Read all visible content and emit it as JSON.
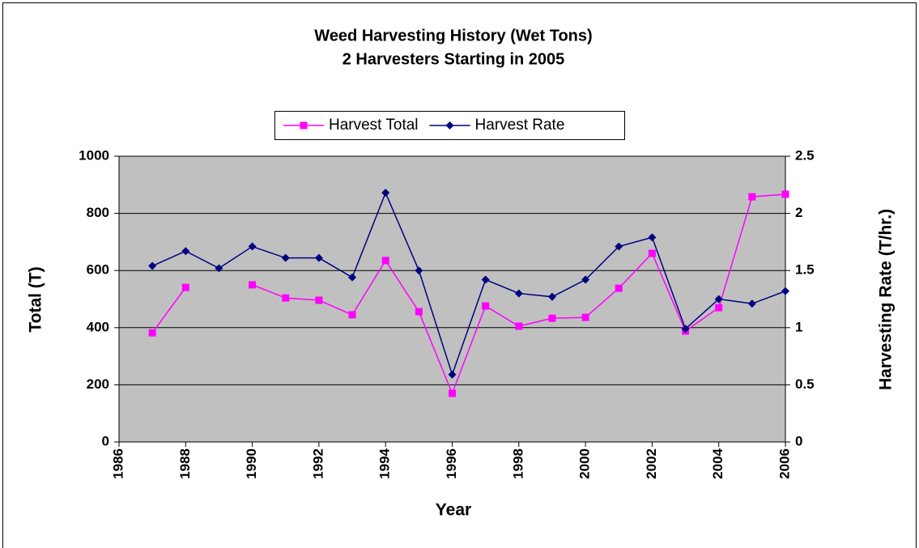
{
  "chart_data": {
    "type": "line",
    "title": "Weed Harvesting History (Wet Tons)",
    "subtitle": "2 Harvesters Starting in 2005",
    "x_label": "Year",
    "y_label": "Total (T)",
    "y2_label": "Harvesting Rate (T/hr.)",
    "x": [
      1987,
      1988,
      1989,
      1990,
      1991,
      1992,
      1993,
      1994,
      1995,
      1996,
      1997,
      1998,
      1999,
      2000,
      2001,
      2002,
      2003,
      2004,
      2005,
      2006
    ],
    "series": [
      {
        "name": "Harvest Total",
        "color": "#ff00ff",
        "marker": "square",
        "values": [
          382,
          541,
          null,
          550,
          504,
          496,
          445,
          635,
          456,
          170,
          476,
          405,
          433,
          436,
          538,
          660,
          388,
          470,
          858,
          867
        ]
      },
      {
        "name": "Harvest Rate",
        "color": "#000080",
        "marker": "diamond",
        "axis": "y2",
        "values": [
          1.54,
          1.67,
          1.52,
          1.71,
          1.61,
          1.61,
          1.44,
          2.18,
          1.5,
          0.59,
          1.42,
          1.3,
          1.27,
          1.42,
          1.71,
          1.79,
          0.99,
          1.25,
          1.21,
          1.32
        ]
      }
    ],
    "xlim": [
      1986,
      2006
    ],
    "xticks": [
      1986,
      1988,
      1990,
      1992,
      1994,
      1996,
      1998,
      2000,
      2002,
      2004,
      2006
    ],
    "ylim": [
      0,
      1000
    ],
    "yticks": [
      0,
      200,
      400,
      600,
      800,
      1000
    ],
    "y2lim": [
      0,
      2.5
    ],
    "y2ticks": [
      0,
      0.5,
      1,
      1.5,
      2,
      2.5
    ],
    "grid": true,
    "legend": "top",
    "plot_background": "#c0c0c0"
  }
}
